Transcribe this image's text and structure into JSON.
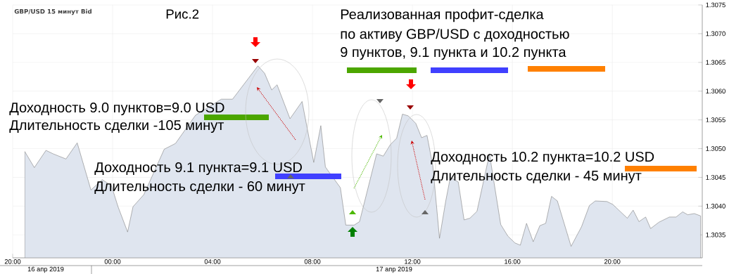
{
  "chart_data": {
    "type": "area",
    "title": "GBP/USD  15 минут Bid",
    "subtitle": "Рис.2",
    "annotations": [
      "Реализованная профит-сделка",
      "по активу GBP/USD с доходностью",
      "9 пунктов, 9.1 пункта и 10.2 пункта",
      "Доходность 9.0 пунктов=9.0 USD",
      "Длительность сделки -105 минут",
      "Доходность 9.1 пункта=9.1 USD",
      "Длительность сделки - 60 минут",
      "Доходность 10.2 пункта=10.2 USD",
      "Длительность сделки - 45 минут",
      "16 апр 2019",
      "17 апр 2019"
    ],
    "x": [
      "2019-04-16T20:29",
      "2019-04-16T20:52",
      "2019-04-16T21:20",
      "2019-04-16T21:37",
      "2019-04-16T22:08",
      "2019-04-16T22:35",
      "2019-04-16T23:08",
      "2019-04-16T23:35",
      "2019-04-16T23:57",
      "2019-04-17T00:13",
      "2019-04-17T00:36",
      "2019-04-17T00:49",
      "2019-04-17T01:15",
      "2019-04-17T02:04",
      "2019-04-17T02:31",
      "2019-04-17T03:19",
      "2019-04-17T04:21",
      "2019-04-17T04:48",
      "2019-04-17T05:49",
      "2019-04-17T06:05",
      "2019-04-17T06:22",
      "2019-04-17T06:35",
      "2019-04-17T07:06",
      "2019-04-17T07:35",
      "2019-04-17T08:03",
      "2019-04-17T08:20",
      "2019-04-17T08:31",
      "2019-04-17T09:07",
      "2019-04-17T09:20",
      "2019-04-17T09:40",
      "2019-04-17T09:53",
      "2019-04-17T10:34",
      "2019-04-17T10:50",
      "2019-04-17T11:07",
      "2019-04-17T11:22",
      "2019-04-17T11:36",
      "2019-04-17T11:50",
      "2019-04-17T12:08",
      "2019-04-17T12:22",
      "2019-04-17T12:35",
      "2019-04-17T12:49",
      "2019-04-17T13:05",
      "2019-04-17T13:20",
      "2019-04-17T13:31",
      "2019-04-17T13:50",
      "2019-04-17T14:04",
      "2019-04-17T14:18",
      "2019-04-17T14:35",
      "2019-04-17T15:05",
      "2019-04-17T15:32",
      "2019-04-17T15:49",
      "2019-04-17T16:06",
      "2019-04-17T16:19",
      "2019-04-17T16:34",
      "2019-04-17T16:50",
      "2019-04-17T17:06",
      "2019-04-17T17:20",
      "2019-04-17T17:34",
      "2019-04-17T17:48",
      "2019-04-17T18:21",
      "2019-04-17T18:46",
      "2019-04-17T19:05",
      "2019-04-17T19:19",
      "2019-04-17T19:47",
      "2019-04-17T20:01",
      "2019-04-17T20:36",
      "2019-04-17T20:50",
      "2019-04-17T21:04",
      "2019-04-17T21:20",
      "2019-04-17T21:32",
      "2019-04-17T21:52",
      "2019-04-17T22:17",
      "2019-04-17T22:33",
      "2019-04-17T22:49",
      "2019-04-17T23:01",
      "2019-04-17T23:17",
      "2019-04-17T23:32"
    ],
    "series": [
      {
        "color": "#dfe5ef",
        "values": [
          1.30495,
          1.30467,
          1.30497,
          1.30491,
          1.30482,
          1.3051,
          1.30428,
          1.30446,
          1.30436,
          1.30399,
          1.30355,
          1.30399,
          1.3042,
          1.30499,
          1.30509,
          1.30558,
          1.30586,
          1.30586,
          1.30644,
          1.30631,
          1.30602,
          1.30611,
          1.30552,
          1.30582,
          1.30476,
          1.3054,
          1.30468,
          1.30432,
          1.30367,
          1.30367,
          1.30373,
          1.30491,
          1.30487,
          1.30507,
          1.30518,
          1.3056,
          1.30557,
          1.30544,
          1.30519,
          1.30523,
          1.3047,
          1.30344,
          1.30409,
          1.3045,
          1.30442,
          1.30376,
          1.30379,
          1.30391,
          1.30491,
          1.30368,
          1.30348,
          1.30336,
          1.30332,
          1.3037,
          1.30338,
          1.30366,
          1.3037,
          1.30417,
          1.30409,
          1.3033,
          1.30364,
          1.30401,
          1.30409,
          1.30408,
          1.30403,
          1.30379,
          1.30393,
          1.30373,
          1.30381,
          1.30361,
          1.30372,
          1.30381,
          1.30381,
          1.3039,
          1.30385,
          1.30387,
          1.30383
        ]
      }
    ],
    "xlim": [
      "2019-04-16T20:00",
      "2019-04-17T23:36"
    ],
    "xticks": [
      {
        "value": "2019-04-16T20:00",
        "label": "20:00"
      },
      {
        "value": "2019-04-17T00:00",
        "label": "00:00"
      },
      {
        "value": "2019-04-17T04:00",
        "label": "04:00"
      },
      {
        "value": "2019-04-17T08:00",
        "label": "08:00"
      },
      {
        "value": "2019-04-17T12:00",
        "label": "12:00"
      },
      {
        "value": "2019-04-17T16:00",
        "label": "16:00"
      },
      {
        "value": "2019-04-17T20:00",
        "label": "20:00"
      }
    ],
    "ylim": [
      1.3031,
      1.3075
    ],
    "yticks": [
      {
        "value": 1.3035,
        "label": "1.3035"
      },
      {
        "value": 1.304,
        "label": "1.3040"
      },
      {
        "value": 1.3045,
        "label": "1.3045"
      },
      {
        "value": 1.305,
        "label": "1.3050"
      },
      {
        "value": 1.3055,
        "label": "1.3055"
      },
      {
        "value": 1.306,
        "label": "1.3060"
      },
      {
        "value": 1.3065,
        "label": "1.3065"
      },
      {
        "value": 1.307,
        "label": "1.3070"
      },
      {
        "value": 1.3075,
        "label": "1.3075"
      }
    ],
    "grid": true,
    "marker": "none",
    "line_style": "solid"
  }
}
